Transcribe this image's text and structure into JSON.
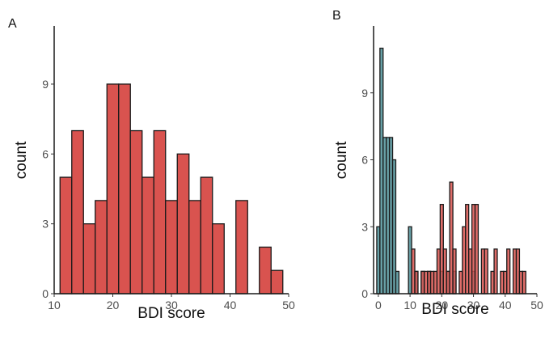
{
  "chart_data": [
    {
      "panel_label": "A",
      "type": "bar",
      "subtype": "histogram",
      "xlabel": "BDI score",
      "ylabel": "count",
      "xlim": [
        10,
        50
      ],
      "ylim": [
        0,
        11.5
      ],
      "xticks": [
        10,
        20,
        30,
        40,
        50
      ],
      "yticks": [
        0,
        3,
        6,
        9
      ],
      "grid": false,
      "series": [
        {
          "color": "#d9534f",
          "bins": [
            {
              "x0": 11,
              "x1": 13,
              "count": 5
            },
            {
              "x0": 13,
              "x1": 15,
              "count": 7
            },
            {
              "x0": 15,
              "x1": 17,
              "count": 3
            },
            {
              "x0": 17,
              "x1": 19,
              "count": 4
            },
            {
              "x0": 19,
              "x1": 21,
              "count": 9
            },
            {
              "x0": 21,
              "x1": 23,
              "count": 9
            },
            {
              "x0": 23,
              "x1": 25,
              "count": 7
            },
            {
              "x0": 25,
              "x1": 27,
              "count": 5
            },
            {
              "x0": 27,
              "x1": 29,
              "count": 7
            },
            {
              "x0": 29,
              "x1": 31,
              "count": 4
            },
            {
              "x0": 31,
              "x1": 33,
              "count": 6
            },
            {
              "x0": 33,
              "x1": 35,
              "count": 4
            },
            {
              "x0": 35,
              "x1": 37,
              "count": 5
            },
            {
              "x0": 37,
              "x1": 39,
              "count": 3
            },
            {
              "x0": 39,
              "x1": 41,
              "count": 0
            },
            {
              "x0": 41,
              "x1": 43,
              "count": 4
            },
            {
              "x0": 43,
              "x1": 45,
              "count": 0
            },
            {
              "x0": 45,
              "x1": 47,
              "count": 2
            },
            {
              "x0": 47,
              "x1": 49,
              "count": 1
            }
          ]
        }
      ]
    },
    {
      "panel_label": "B",
      "type": "bar",
      "subtype": "histogram",
      "xlabel": "BDI score",
      "ylabel": "count",
      "xlim": [
        -1.5,
        50
      ],
      "ylim": [
        0,
        12
      ],
      "xticks": [
        0,
        10,
        20,
        30,
        40,
        50
      ],
      "yticks": [
        0,
        3,
        6,
        9
      ],
      "grid": false,
      "series": [
        {
          "color": "#4e8f96",
          "bins": [
            {
              "x0": -0.5,
              "x1": 0.5,
              "count": 3
            },
            {
              "x0": 0.5,
              "x1": 1.5,
              "count": 11
            },
            {
              "x0": 1.5,
              "x1": 2.5,
              "count": 7
            },
            {
              "x0": 2.5,
              "x1": 3.5,
              "count": 7
            },
            {
              "x0": 3.5,
              "x1": 4.5,
              "count": 7
            },
            {
              "x0": 4.5,
              "x1": 5.5,
              "count": 6
            },
            {
              "x0": 5.5,
              "x1": 6.5,
              "count": 1
            },
            {
              "x0": 8.5,
              "x1": 9.5,
              "count": 0
            },
            {
              "x0": 9.5,
              "x1": 10.5,
              "count": 3
            },
            {
              "x0": 11.5,
              "x1": 12.5,
              "count": 1
            },
            {
              "x0": 13.5,
              "x1": 14.5,
              "count": 1
            },
            {
              "x0": 15.5,
              "x1": 16.5,
              "count": 1
            },
            {
              "x0": 19.5,
              "x1": 20.5,
              "count": 1
            },
            {
              "x0": 21.5,
              "x1": 22.5,
              "count": 1
            },
            {
              "x0": 23.5,
              "x1": 24.5,
              "count": 1
            },
            {
              "x0": 29.5,
              "x1": 30.5,
              "count": 1
            }
          ]
        },
        {
          "color": "#d9534f",
          "bins": [
            {
              "x0": 10.5,
              "x1": 11.5,
              "count": 2
            },
            {
              "x0": 11.5,
              "x1": 12.5,
              "count": 1
            },
            {
              "x0": 13.5,
              "x1": 14.5,
              "count": 1
            },
            {
              "x0": 14.5,
              "x1": 15.5,
              "count": 1
            },
            {
              "x0": 15.5,
              "x1": 16.5,
              "count": 1
            },
            {
              "x0": 16.5,
              "x1": 17.5,
              "count": 1
            },
            {
              "x0": 17.5,
              "x1": 18.5,
              "count": 1
            },
            {
              "x0": 18.5,
              "x1": 19.5,
              "count": 2
            },
            {
              "x0": 19.5,
              "x1": 20.5,
              "count": 4
            },
            {
              "x0": 20.5,
              "x1": 21.5,
              "count": 2
            },
            {
              "x0": 21.5,
              "x1": 22.5,
              "count": 1
            },
            {
              "x0": 22.5,
              "x1": 23.5,
              "count": 5
            },
            {
              "x0": 23.5,
              "x1": 24.5,
              "count": 2
            },
            {
              "x0": 25.5,
              "x1": 26.5,
              "count": 1
            },
            {
              "x0": 26.5,
              "x1": 27.5,
              "count": 3
            },
            {
              "x0": 27.5,
              "x1": 28.5,
              "count": 4
            },
            {
              "x0": 28.5,
              "x1": 29.5,
              "count": 2
            },
            {
              "x0": 29.5,
              "x1": 30.5,
              "count": 4
            },
            {
              "x0": 30.5,
              "x1": 31.5,
              "count": 4
            },
            {
              "x0": 32.5,
              "x1": 33.5,
              "count": 2
            },
            {
              "x0": 33.5,
              "x1": 34.5,
              "count": 2
            },
            {
              "x0": 35.5,
              "x1": 36.5,
              "count": 1
            },
            {
              "x0": 36.5,
              "x1": 37.5,
              "count": 2
            },
            {
              "x0": 38.5,
              "x1": 39.5,
              "count": 1
            },
            {
              "x0": 39.5,
              "x1": 40.5,
              "count": 1
            },
            {
              "x0": 40.5,
              "x1": 41.5,
              "count": 2
            },
            {
              "x0": 42.5,
              "x1": 43.5,
              "count": 2
            },
            {
              "x0": 43.5,
              "x1": 44.5,
              "count": 2
            },
            {
              "x0": 44.5,
              "x1": 45.5,
              "count": 1
            },
            {
              "x0": 45.5,
              "x1": 46.5,
              "count": 1
            }
          ]
        }
      ]
    }
  ]
}
